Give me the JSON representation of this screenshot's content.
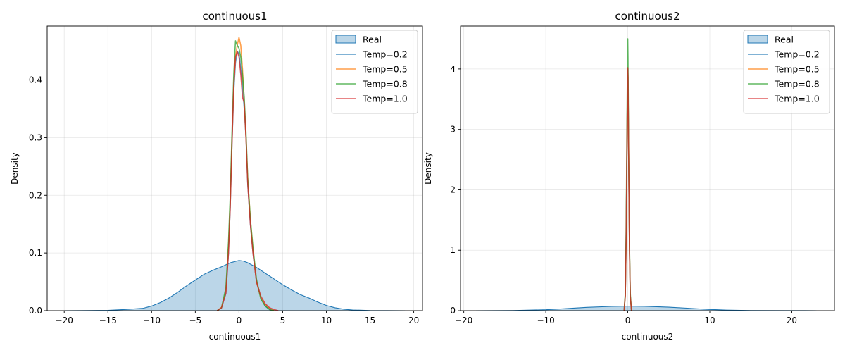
{
  "chart_data": [
    {
      "type": "area",
      "title": "continuous1",
      "xlabel": "continuous1",
      "ylabel": "Density",
      "xlim": [
        -21.95,
        21.0
      ],
      "ylim": [
        0,
        0.4935
      ],
      "xticks": [
        -20,
        -15,
        -10,
        -5,
        0,
        5,
        10,
        15,
        20
      ],
      "xtick_labels": [
        "−20",
        "−15",
        "−10",
        "−5",
        "0",
        "5",
        "10",
        "15",
        "20"
      ],
      "yticks": [
        0.0,
        0.1,
        0.2,
        0.3,
        0.4
      ],
      "ytick_labels": [
        "0.0",
        "0.1",
        "0.2",
        "0.3",
        "0.4"
      ],
      "grid": true,
      "legend": "top-right",
      "series": [
        {
          "name": "Real",
          "kind": "filled",
          "color": "#1f77b4",
          "x": [
            -20,
            -15,
            -13,
            -11,
            -10,
            -9,
            -8,
            -7,
            -6,
            -5,
            -4,
            -3,
            -2,
            -1,
            0,
            0.5,
            1,
            2,
            3,
            4,
            5,
            6,
            7,
            8,
            9,
            10,
            11,
            12,
            13,
            15,
            17,
            19
          ],
          "y": [
            0,
            0.0005,
            0.002,
            0.004,
            0.008,
            0.014,
            0.022,
            0.032,
            0.043,
            0.053,
            0.063,
            0.07,
            0.076,
            0.083,
            0.087,
            0.086,
            0.083,
            0.075,
            0.065,
            0.055,
            0.045,
            0.036,
            0.028,
            0.022,
            0.015,
            0.009,
            0.005,
            0.0025,
            0.0012,
            0.0003,
            0.0001,
            0
          ]
        },
        {
          "name": "Temp=0.2",
          "kind": "line",
          "color": "#1f77b4",
          "x": [
            -2.5,
            -2.0,
            -1.5,
            -1.2,
            -1.0,
            -0.8,
            -0.6,
            -0.4,
            -0.2,
            0,
            0.2,
            0.4,
            0.6,
            0.8,
            1.0,
            1.3,
            1.6,
            2.0,
            2.5,
            3.0,
            3.5,
            4.0
          ],
          "y": [
            0,
            0.005,
            0.03,
            0.1,
            0.18,
            0.29,
            0.38,
            0.43,
            0.45,
            0.445,
            0.42,
            0.39,
            0.35,
            0.3,
            0.22,
            0.15,
            0.1,
            0.05,
            0.022,
            0.008,
            0.002,
            0
          ]
        },
        {
          "name": "Temp=0.5",
          "kind": "line",
          "color": "#ff7f0e",
          "x": [
            -2.5,
            -2.0,
            -1.5,
            -1.2,
            -1.0,
            -0.8,
            -0.6,
            -0.4,
            -0.2,
            0,
            0.2,
            0.4,
            0.6,
            0.8,
            1.0,
            1.3,
            1.6,
            2.0,
            2.5,
            3.0,
            3.5,
            4.0
          ],
          "y": [
            0,
            0.006,
            0.035,
            0.11,
            0.19,
            0.3,
            0.39,
            0.44,
            0.46,
            0.474,
            0.46,
            0.42,
            0.36,
            0.3,
            0.23,
            0.16,
            0.105,
            0.05,
            0.022,
            0.01,
            0.004,
            0
          ]
        },
        {
          "name": "Temp=0.8",
          "kind": "line",
          "color": "#2ca02c",
          "x": [
            -2.5,
            -2.0,
            -1.5,
            -1.2,
            -1.0,
            -0.8,
            -0.6,
            -0.4,
            -0.2,
            0,
            0.2,
            0.4,
            0.6,
            0.8,
            1.0,
            1.3,
            1.6,
            2.0,
            2.5,
            3.0,
            3.5,
            4.0
          ],
          "y": [
            0,
            0.005,
            0.04,
            0.12,
            0.2,
            0.31,
            0.41,
            0.468,
            0.46,
            0.455,
            0.44,
            0.41,
            0.37,
            0.31,
            0.23,
            0.16,
            0.11,
            0.055,
            0.02,
            0.008,
            0.002,
            0
          ]
        },
        {
          "name": "Temp=1.0",
          "kind": "line",
          "color": "#d62728",
          "x": [
            -2.5,
            -2.0,
            -1.5,
            -1.2,
            -1.0,
            -0.8,
            -0.6,
            -0.4,
            -0.2,
            0,
            0.2,
            0.4,
            0.6,
            0.8,
            1.0,
            1.3,
            1.6,
            2.0,
            2.5,
            3.0,
            3.5,
            4.0,
            4.5
          ],
          "y": [
            0,
            0.005,
            0.03,
            0.1,
            0.18,
            0.29,
            0.39,
            0.44,
            0.449,
            0.44,
            0.41,
            0.37,
            0.36,
            0.3,
            0.22,
            0.15,
            0.1,
            0.05,
            0.025,
            0.012,
            0.005,
            0.002,
            0
          ]
        }
      ]
    },
    {
      "type": "area",
      "title": "continuous2",
      "xlabel": "continuous2",
      "ylabel": "Density",
      "xlim": [
        -20.4,
        25.2
      ],
      "ylim": [
        0,
        4.71
      ],
      "xticks": [
        -20,
        -10,
        0,
        10,
        20
      ],
      "xtick_labels": [
        "−20",
        "−10",
        "0",
        "10",
        "20"
      ],
      "yticks": [
        0,
        1,
        2,
        3,
        4
      ],
      "ytick_labels": [
        "0",
        "1",
        "2",
        "3",
        "4"
      ],
      "grid": true,
      "legend": "top-right",
      "series": [
        {
          "name": "Real",
          "kind": "filled",
          "color": "#1f77b4",
          "x": [
            -18.5,
            -14,
            -10,
            -8,
            -5,
            -2,
            0,
            2,
            5,
            8,
            10,
            12,
            15,
            20,
            23
          ],
          "y": [
            0,
            0.003,
            0.015,
            0.03,
            0.055,
            0.07,
            0.075,
            0.072,
            0.058,
            0.035,
            0.02,
            0.01,
            0.003,
            0.0005,
            0
          ]
        },
        {
          "name": "Temp=0.2",
          "kind": "line",
          "color": "#1f77b4",
          "x": [
            -0.45,
            -0.3,
            -0.2,
            -0.1,
            -0.03,
            0,
            0.03,
            0.1,
            0.2,
            0.3,
            0.45
          ],
          "y": [
            0,
            0.25,
            1.2,
            2.8,
            3.9,
            4.0,
            3.8,
            2.6,
            1.1,
            0.25,
            0
          ]
        },
        {
          "name": "Temp=0.5",
          "kind": "line",
          "color": "#ff7f0e",
          "x": [
            -0.45,
            -0.3,
            -0.2,
            -0.1,
            -0.03,
            0,
            0.03,
            0.1,
            0.2,
            0.3,
            0.45
          ],
          "y": [
            0,
            0.25,
            1.15,
            2.7,
            3.85,
            4.02,
            3.85,
            2.7,
            1.15,
            0.25,
            0
          ]
        },
        {
          "name": "Temp=0.8",
          "kind": "line",
          "color": "#2ca02c",
          "x": [
            -0.45,
            -0.3,
            -0.2,
            -0.1,
            -0.03,
            0,
            0.03,
            0.1,
            0.2,
            0.3,
            0.45
          ],
          "y": [
            0,
            0.3,
            1.4,
            3.1,
            4.3,
            4.5,
            4.2,
            2.8,
            1.2,
            0.3,
            0
          ]
        },
        {
          "name": "Temp=1.0",
          "kind": "line",
          "color": "#d62728",
          "x": [
            -0.45,
            -0.3,
            -0.2,
            -0.1,
            -0.03,
            0,
            0.03,
            0.1,
            0.2,
            0.3,
            0.45
          ],
          "y": [
            0,
            0.25,
            1.15,
            2.8,
            3.9,
            4.02,
            3.85,
            2.65,
            1.1,
            0.25,
            0
          ]
        }
      ]
    }
  ]
}
